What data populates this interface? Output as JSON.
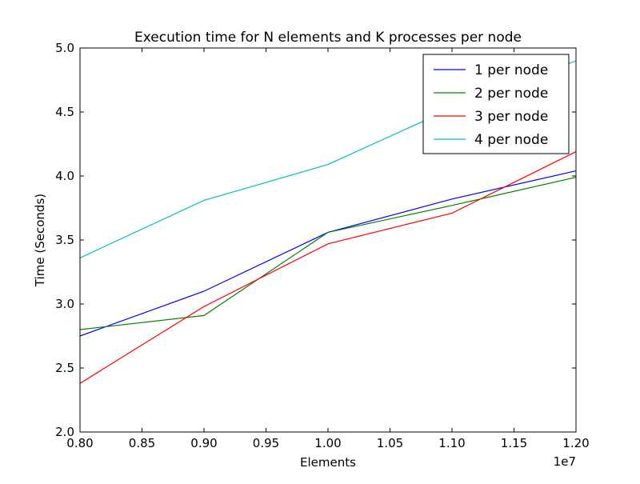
{
  "chart_data": {
    "type": "line",
    "title": "Execution time for N elements and K processes per node",
    "xlabel": "Elements",
    "ylabel": "Time (Seconds)",
    "x_offset_label": "1e7",
    "x_scale": 10000000,
    "xlim": [
      0.8,
      1.2
    ],
    "ylim": [
      2.0,
      5.0
    ],
    "xticks": [
      "0.80",
      "0.85",
      "0.90",
      "0.95",
      "1.00",
      "1.05",
      "1.10",
      "1.15",
      "1.20"
    ],
    "yticks": [
      "2.0",
      "2.5",
      "3.0",
      "3.5",
      "4.0",
      "4.5",
      "5.0"
    ],
    "grid": false,
    "legend_position": "top-right",
    "x": [
      0.8,
      0.9,
      1.0,
      1.1,
      1.2
    ],
    "series": [
      {
        "name": "1 per node",
        "color": "#0000ff",
        "values": [
          2.75,
          3.1,
          3.56,
          3.82,
          4.04
        ]
      },
      {
        "name": "2 per node",
        "color": "#008000",
        "values": [
          2.8,
          2.91,
          3.56,
          3.77,
          3.99
        ]
      },
      {
        "name": "3 per node",
        "color": "#ff0000",
        "values": [
          2.38,
          2.98,
          3.47,
          3.71,
          4.19
        ]
      },
      {
        "name": "4 per node",
        "color": "#00bfbf",
        "values": [
          3.36,
          3.81,
          4.09,
          4.53,
          4.9
        ]
      }
    ]
  }
}
